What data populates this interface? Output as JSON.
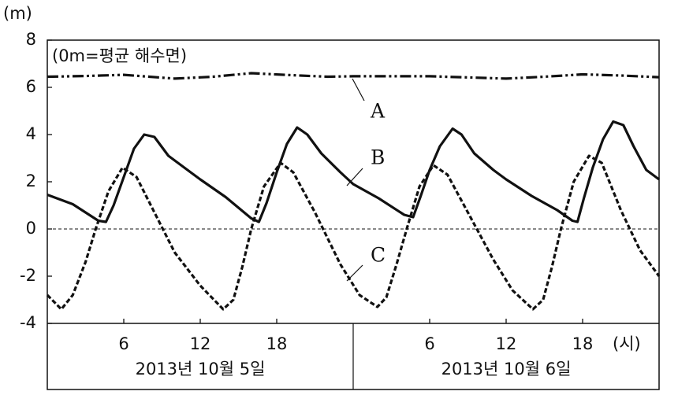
{
  "chart_data": {
    "type": "line",
    "y_label": "(m)",
    "x_unit": "(시)",
    "annotation": "(0m=평균 해수면)",
    "day_labels": [
      "2013년 10월 5일",
      "2013년 10월 6일"
    ],
    "xlim": [
      0,
      48
    ],
    "ylim": [
      -4,
      8
    ],
    "xticks": [
      6,
      12,
      18,
      {
        "value": 30,
        "label": "6"
      },
      {
        "value": 36,
        "label": "12"
      },
      {
        "value": 42,
        "label": "18"
      }
    ],
    "yticks": [
      8,
      6,
      4,
      2,
      0,
      -2,
      -4
    ],
    "series": [
      {
        "name": "A",
        "color": "#111111",
        "linestyle": "dash-dot-dot",
        "x": [
          0,
          3,
          6,
          8,
          10,
          13,
          16,
          19,
          22,
          24,
          27,
          30,
          33,
          36,
          39,
          42,
          45,
          48
        ],
        "values": [
          6.45,
          6.48,
          6.53,
          6.45,
          6.37,
          6.45,
          6.6,
          6.52,
          6.45,
          6.47,
          6.47,
          6.47,
          6.42,
          6.37,
          6.45,
          6.55,
          6.5,
          6.43
        ]
      },
      {
        "name": "B",
        "color": "#111111",
        "linestyle": "solid",
        "x": [
          0,
          2,
          4,
          4.6,
          5.2,
          6,
          6.8,
          7.6,
          8.4,
          9.5,
          11,
          12,
          14,
          16,
          16.6,
          17.2,
          18,
          18.8,
          19.6,
          20.4,
          21.5,
          23,
          24,
          26,
          28,
          28.7,
          29.3,
          30,
          30.8,
          31.8,
          32.5,
          33.5,
          35,
          36,
          38,
          40,
          41.2,
          41.6,
          42.1,
          42.8,
          43.6,
          44.4,
          45.2,
          46,
          47,
          48
        ],
        "values": [
          1.45,
          1.05,
          0.35,
          0.3,
          1.0,
          2.2,
          3.4,
          4.0,
          3.9,
          3.1,
          2.5,
          2.1,
          1.35,
          0.45,
          0.3,
          1.1,
          2.4,
          3.6,
          4.3,
          4.0,
          3.2,
          2.4,
          1.9,
          1.3,
          0.6,
          0.5,
          1.4,
          2.5,
          3.5,
          4.25,
          4.0,
          3.2,
          2.5,
          2.1,
          1.4,
          0.8,
          0.35,
          0.3,
          1.3,
          2.6,
          3.8,
          4.55,
          4.4,
          3.5,
          2.5,
          2.1
        ]
      },
      {
        "name": "C",
        "color": "#111111",
        "linestyle": "dashed",
        "x": [
          0,
          1.1,
          2,
          3,
          3.8,
          4.8,
          5.9,
          7,
          8.5,
          10,
          12,
          13.8,
          14.6,
          15.3,
          16,
          17,
          18.3,
          19.3,
          21,
          23,
          24.5,
          25.9,
          26.6,
          27.4,
          28.2,
          29.2,
          30.3,
          31.4,
          33,
          35,
          36.5,
          38.1,
          38.9,
          39.6,
          40.3,
          41.3,
          42.5,
          43.5,
          45,
          46.5,
          48
        ],
        "values": [
          -2.8,
          -3.4,
          -2.8,
          -1.4,
          0,
          1.6,
          2.6,
          2.2,
          0.6,
          -1.0,
          -2.4,
          -3.4,
          -3.0,
          -1.6,
          0,
          1.8,
          2.8,
          2.4,
          0.7,
          -1.5,
          -2.8,
          -3.3,
          -2.9,
          -1.5,
          0,
          1.8,
          2.7,
          2.3,
          0.7,
          -1.3,
          -2.6,
          -3.4,
          -3.0,
          -1.6,
          0,
          2.0,
          3.1,
          2.8,
          0.8,
          -0.9,
          -2.0
        ]
      }
    ]
  }
}
